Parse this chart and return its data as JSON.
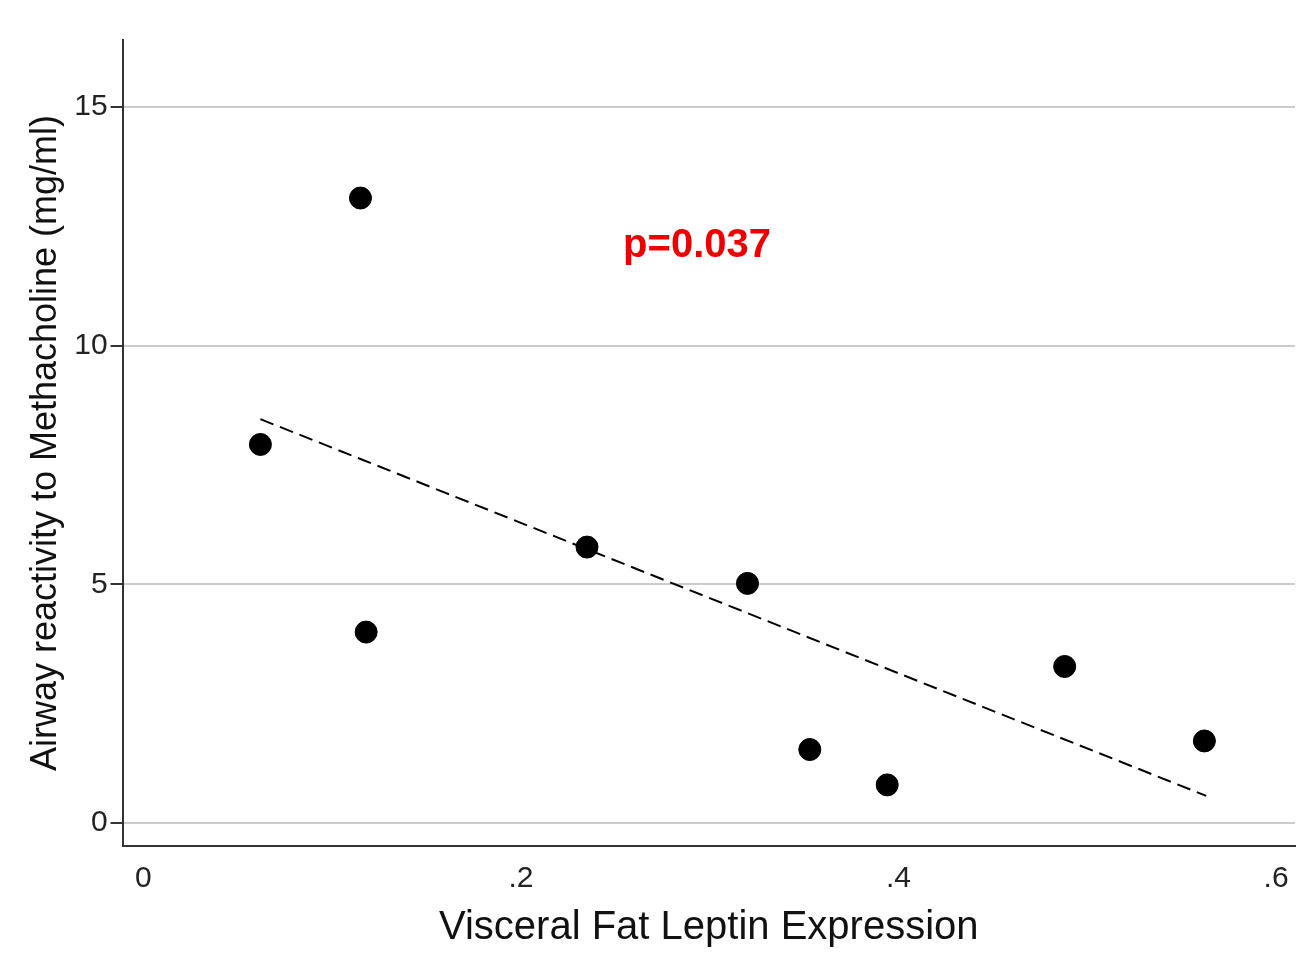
{
  "chart_data": {
    "type": "scatter",
    "xlabel": "Visceral Fat Leptin Expression",
    "ylabel": "Airway reactivity to Methacholine (mg/ml)",
    "annotations": [
      "p=0.037"
    ],
    "x": [
      0.062,
      0.115,
      0.118,
      0.235,
      0.32,
      0.353,
      0.394,
      0.488,
      0.562
    ],
    "series": [
      {
        "color": "#000000",
        "values": [
          7.93,
          13.09,
          4.0,
          5.78,
          5.02,
          1.54,
          0.8,
          3.28,
          1.72
        ]
      },
      {
        "type": "line",
        "x": [
          0.062,
          0.563
        ],
        "values": [
          8.46,
          0.57
        ],
        "color": "#000000",
        "line_style": "dashed",
        "marker": "none"
      }
    ],
    "marker": "circle",
    "xlim": [
      -0.011,
      0.61
    ],
    "ylim": [
      -0.48,
      16.4
    ],
    "xticks": [
      0,
      {
        "value": 0.2,
        "label": ".2"
      },
      {
        "value": 0.4,
        "label": ".4"
      },
      {
        "value": 0.6,
        "label": ".6"
      }
    ],
    "yticks": [
      0,
      5,
      10,
      15
    ],
    "grid": "y",
    "legend": false
  }
}
